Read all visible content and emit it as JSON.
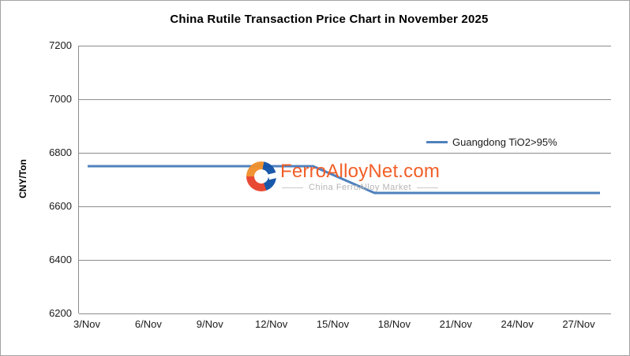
{
  "chart_data": {
    "type": "line",
    "title": "China Rutile Transaction Price Chart in November 2025",
    "xlabel": "",
    "ylabel": "CNY/Ton",
    "ylim": [
      6200,
      7200
    ],
    "y_ticks": [
      7200,
      7000,
      6800,
      6600,
      6400,
      6200
    ],
    "x_tick_labels": [
      "3/Nov",
      "6/Nov",
      "9/Nov",
      "12/Nov",
      "15/Nov",
      "18/Nov",
      "21/Nov",
      "24/Nov",
      "27/Nov"
    ],
    "x_day_range": [
      3,
      28
    ],
    "x_tick_day_step": 3,
    "grid": "horizontal",
    "legend_position": "inside-right-upper",
    "series": [
      {
        "name": "Guangdong TiO2>95%",
        "unit": "CNY/Ton",
        "points": [
          {
            "day": 3,
            "label": "3/Nov",
            "value": 6750
          },
          {
            "day": 14,
            "label": "14/Nov",
            "value": 6750
          },
          {
            "day": 17,
            "label": "17/Nov",
            "value": 6650
          },
          {
            "day": 28,
            "label": "28/Nov",
            "value": 6650
          }
        ]
      }
    ]
  },
  "legend": {
    "label": "Guangdong TiO2>95%"
  },
  "watermark": {
    "brand": "FerroAlloyNet.com",
    "tagline": "China FerroAlloy Market"
  },
  "colors": {
    "series_line": "#4f81bd",
    "grid": "#8c8c8c",
    "axis_text": "#1a1a1a",
    "frame_border": "#a3a3a3",
    "brand_orange": "#f15a22",
    "logo_orange": "#f0902e",
    "logo_red": "#e8442e",
    "logo_blue": "#1353a8",
    "tagline_gray": "#b3b3b3"
  }
}
